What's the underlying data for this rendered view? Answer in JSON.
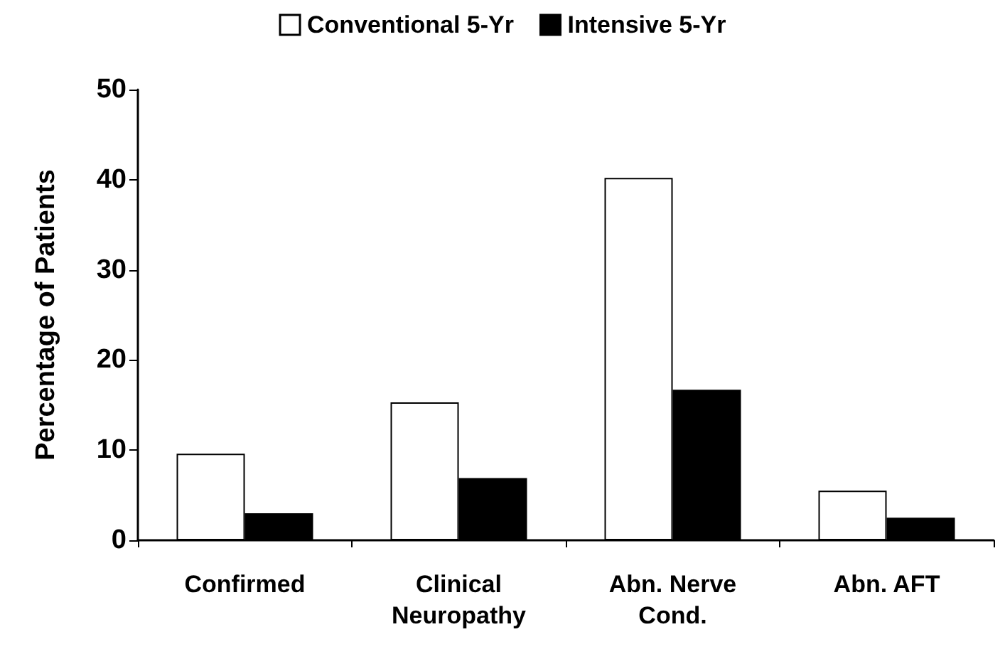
{
  "chart_data": {
    "type": "bar",
    "ylabel": "Percentage of Patients",
    "categories": [
      "Confirmed",
      "Clinical\nNeuropathy",
      "Abn. Nerve\nCond.",
      "Abn. AFT"
    ],
    "series": [
      {
        "name": "Conventional 5-Yr",
        "color": "#ffffff",
        "values": [
          9.6,
          15.3,
          40.2,
          5.5
        ]
      },
      {
        "name": "Intensive 5-Yr",
        "color": "#000000",
        "values": [
          3.0,
          6.9,
          16.7,
          2.5
        ]
      }
    ],
    "ylim": [
      0,
      50
    ],
    "yticks": [
      0,
      10,
      20,
      30,
      40,
      50
    ],
    "grid": false,
    "legend": "top"
  }
}
